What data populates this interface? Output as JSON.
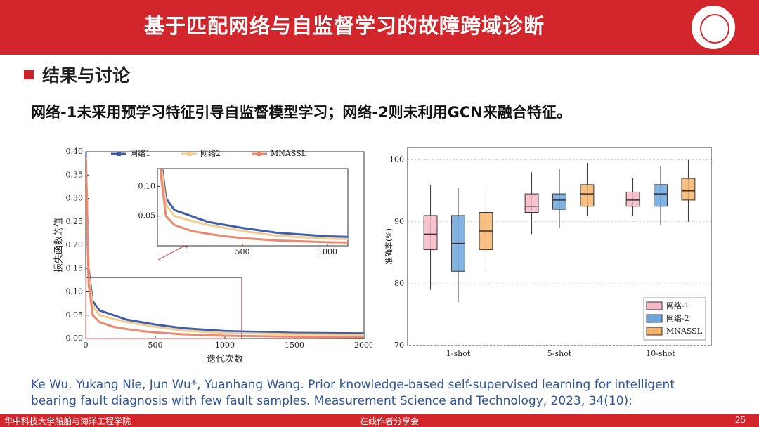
{
  "header": {
    "title": "基于匹配网络与自监督学习的故障跨域诊断"
  },
  "section": {
    "heading": "结果与讨论"
  },
  "subtitle": "网络-1未采用预学习特征引导自监督模型学习；网络-2则未利用GCN来融合特征。",
  "chart_data": [
    {
      "type": "line",
      "xlabel": "迭代次数",
      "ylabel": "损失函数的值",
      "x": [
        0,
        20,
        50,
        100,
        200,
        300,
        400,
        500,
        700,
        1000,
        1500,
        2000
      ],
      "series": [
        {
          "name": "网络1",
          "color": "#3f5ea8",
          "values": [
            0.4,
            0.15,
            0.08,
            0.06,
            0.05,
            0.04,
            0.035,
            0.03,
            0.022,
            0.016,
            0.012,
            0.011
          ]
        },
        {
          "name": "网络2",
          "color": "#f3cc93",
          "values": [
            0.39,
            0.14,
            0.07,
            0.05,
            0.042,
            0.035,
            0.03,
            0.025,
            0.017,
            0.012,
            0.009,
            0.008
          ]
        },
        {
          "name": "MNASSL",
          "color": "#e98a70",
          "values": [
            0.38,
            0.12,
            0.05,
            0.035,
            0.025,
            0.02,
            0.016,
            0.013,
            0.009,
            0.006,
            0.004,
            0.003
          ]
        }
      ],
      "xlim": [
        0,
        2000
      ],
      "ylim": [
        0,
        0.4
      ],
      "xticks": [
        0,
        500,
        1000,
        1500,
        2000
      ],
      "yticks": [
        {
          "value": 0,
          "label": "0.00"
        },
        0.05,
        {
          "value": 0.1,
          "label": "0.10"
        },
        0.15,
        {
          "value": 0.2,
          "label": "0.20"
        },
        0.25,
        {
          "value": 0.3,
          "label": "0.30"
        },
        0.35,
        {
          "value": 0.4,
          "label": "0.40"
        }
      ],
      "inset": {
        "xlim": [
          0,
          1120
        ],
        "ylim": [
          0,
          0.13
        ],
        "xticks": [
          500,
          1000
        ],
        "yticks": [
          0.05,
          {
            "value": 0.1,
            "label": "0.10"
          }
        ]
      }
    },
    {
      "type": "box",
      "ylabel": "准确率(%)",
      "categories": [
        "1-shot",
        "5-shot",
        "10-shot"
      ],
      "ylim": [
        70,
        102
      ],
      "yticks": [
        70,
        80,
        90,
        100
      ],
      "grid": true,
      "legend": "lower right",
      "series": [
        {
          "name": "网络-1",
          "color": "#f5b8c6",
          "min": [
            79,
            88,
            91
          ],
          "q1": [
            85.5,
            91.5,
            92.5
          ],
          "median": [
            88,
            92.5,
            93.5
          ],
          "q3": [
            91,
            94.5,
            94.8
          ],
          "max": [
            96,
            98,
            97
          ]
        },
        {
          "name": "网络-2",
          "color": "#6fa6dc",
          "min": [
            77,
            89,
            89.5
          ],
          "q1": [
            82,
            92,
            92.5
          ],
          "median": [
            86.5,
            93.5,
            94.5
          ],
          "q3": [
            91,
            94.5,
            96
          ],
          "max": [
            95.5,
            98.5,
            99
          ]
        },
        {
          "name": "MNASSL",
          "color": "#f6b46b",
          "min": [
            82,
            91,
            90
          ],
          "q1": [
            85.5,
            92.5,
            93.5
          ],
          "median": [
            88.5,
            94.5,
            95
          ],
          "q3": [
            91.5,
            96,
            97
          ],
          "max": [
            95,
            99.5,
            100
          ]
        }
      ]
    }
  ],
  "citation": [
    "Ke Wu, Yukang Nie, Jun Wu*, Yuanhang Wang. Prior knowledge-based self-supervised learning for intelligent",
    "bearing fault diagnosis with few fault samples. Measurement Science and Technology, 2023, 34(10):"
  ],
  "footer": {
    "left": "华中科技大学船舶与海洋工程学院",
    "center": "在线作者分享会",
    "page": "25"
  }
}
